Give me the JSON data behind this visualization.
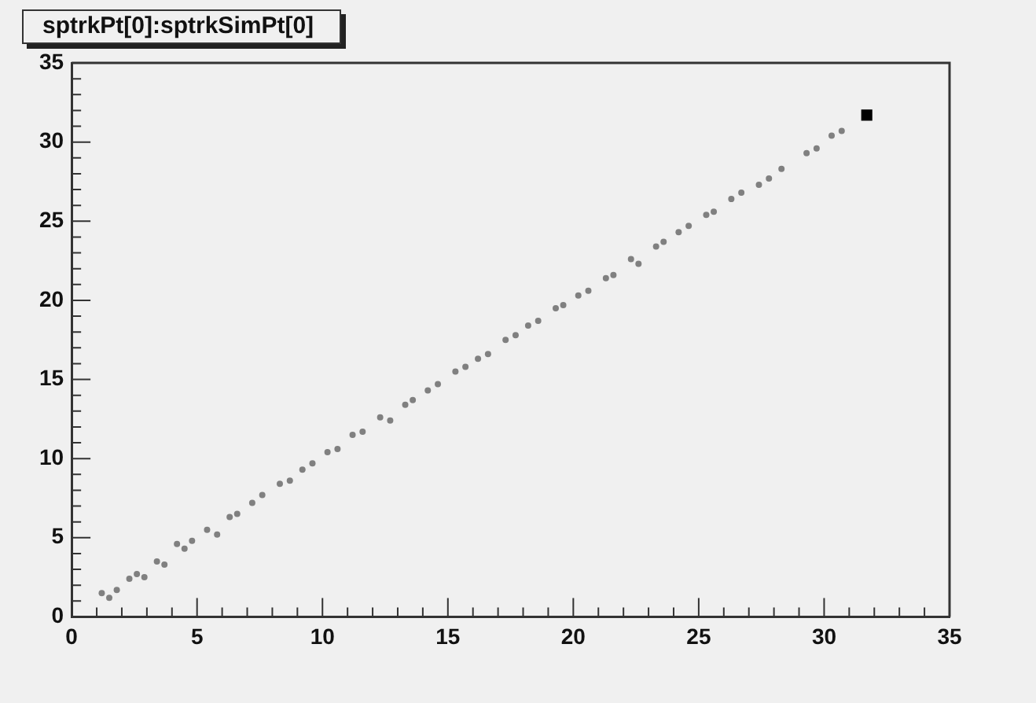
{
  "chart_data": {
    "type": "scatter",
    "title": "sptrkPt[0]:sptrkSimPt[0]",
    "xlim": [
      0,
      35
    ],
    "ylim": [
      0,
      35
    ],
    "xticks": [
      0,
      5,
      10,
      15,
      20,
      25,
      30,
      35
    ],
    "yticks": [
      0,
      5,
      10,
      15,
      20,
      25,
      30,
      35
    ],
    "grid": false,
    "legend": false,
    "marker": "circle",
    "series": [
      {
        "color": "#808080",
        "x": [
          1.2,
          1.5,
          1.8,
          2.3,
          2.6,
          2.9,
          3.4,
          3.7,
          4.2,
          4.5,
          4.8,
          5.4,
          5.8,
          6.3,
          6.6,
          7.2,
          7.6,
          8.3,
          8.7,
          9.2,
          9.6,
          10.2,
          10.6,
          11.2,
          11.6,
          12.3,
          12.7,
          13.3,
          13.6,
          14.2,
          14.6,
          15.3,
          15.7,
          16.2,
          16.6,
          17.3,
          17.7,
          18.2,
          18.6,
          19.3,
          19.6,
          20.2,
          20.6,
          21.3,
          21.6,
          22.3,
          22.6,
          23.3,
          23.6,
          24.2,
          24.6,
          25.3,
          25.6,
          26.3,
          26.7,
          27.4,
          27.8,
          28.3,
          29.3,
          29.7,
          30.3,
          30.7
        ],
        "values": [
          1.5,
          1.2,
          1.7,
          2.4,
          2.7,
          2.5,
          3.5,
          3.3,
          4.6,
          4.3,
          4.8,
          5.5,
          5.2,
          6.3,
          6.5,
          7.2,
          7.7,
          8.4,
          8.6,
          9.3,
          9.7,
          10.4,
          10.6,
          11.5,
          11.7,
          12.6,
          12.4,
          13.4,
          13.7,
          14.3,
          14.7,
          15.5,
          15.8,
          16.3,
          16.6,
          17.5,
          17.8,
          18.4,
          18.7,
          19.5,
          19.7,
          20.3,
          20.6,
          21.4,
          21.6,
          22.6,
          22.3,
          23.4,
          23.7,
          24.3,
          24.7,
          25.4,
          25.6,
          26.4,
          26.8,
          27.3,
          27.7,
          28.3,
          29.3,
          29.6,
          30.4,
          30.7
        ]
      },
      {
        "color": "#000000",
        "marker": "square",
        "x": [
          31.7
        ],
        "values": [
          31.7
        ]
      }
    ]
  }
}
